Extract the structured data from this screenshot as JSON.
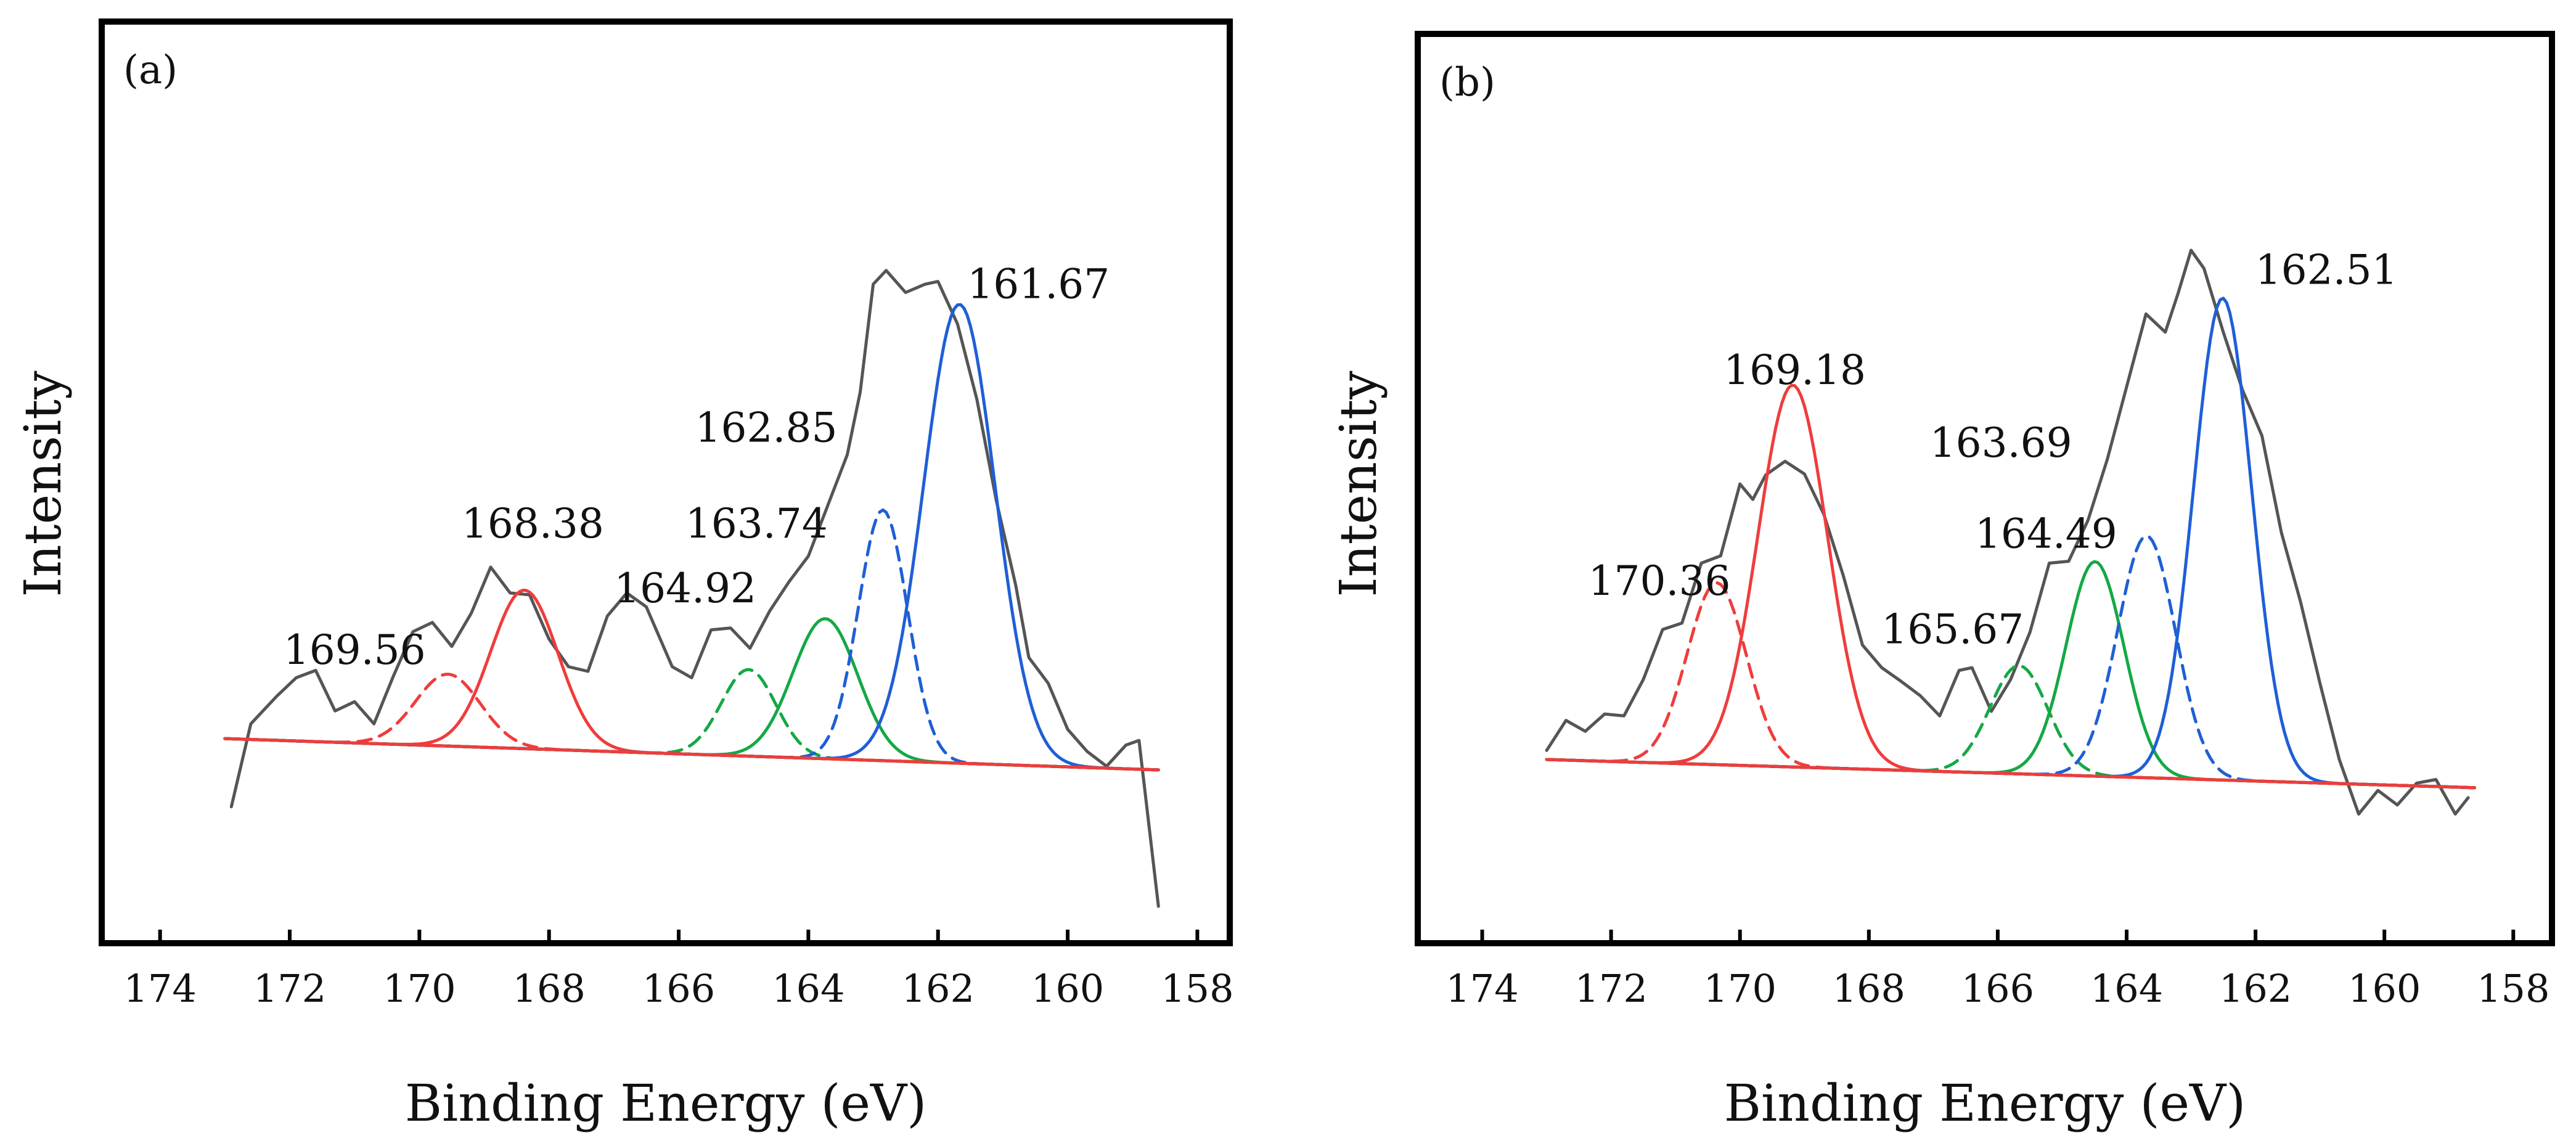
{
  "chart_data": [
    {
      "type": "line",
      "panel_label": "(a)",
      "xlabel": "Binding Energy (eV)",
      "ylabel": "Intensity",
      "xlim": [
        174.9,
        157.5
      ],
      "x_reversed": true,
      "ylim": [
        0,
        1
      ],
      "y_ticks_visible": false,
      "x_ticks": [
        174,
        172,
        170,
        168,
        166,
        164,
        162,
        160,
        158
      ],
      "grid": false,
      "baseline": [
        {
          "x": 173.0,
          "y": 0.222
        },
        {
          "x": 158.6,
          "y": 0.188
        }
      ],
      "raw": {
        "color": "#555555",
        "points": [
          [
            172.9,
            0.148
          ],
          [
            172.6,
            0.238
          ],
          [
            172.2,
            0.268
          ],
          [
            171.9,
            0.288
          ],
          [
            171.6,
            0.296
          ],
          [
            171.3,
            0.252
          ],
          [
            171.0,
            0.262
          ],
          [
            170.7,
            0.238
          ],
          [
            170.4,
            0.29
          ],
          [
            170.1,
            0.338
          ],
          [
            169.8,
            0.348
          ],
          [
            169.5,
            0.322
          ],
          [
            169.2,
            0.358
          ],
          [
            168.9,
            0.408
          ],
          [
            168.6,
            0.38
          ],
          [
            168.3,
            0.378
          ],
          [
            168.0,
            0.33
          ],
          [
            167.7,
            0.3
          ],
          [
            167.4,
            0.295
          ],
          [
            167.1,
            0.355
          ],
          [
            166.8,
            0.38
          ],
          [
            166.5,
            0.365
          ],
          [
            166.1,
            0.3
          ],
          [
            165.8,
            0.288
          ],
          [
            165.5,
            0.34
          ],
          [
            165.2,
            0.342
          ],
          [
            164.9,
            0.32
          ],
          [
            164.6,
            0.36
          ],
          [
            164.3,
            0.392
          ],
          [
            164.0,
            0.42
          ],
          [
            163.7,
            0.475
          ],
          [
            163.4,
            0.53
          ],
          [
            163.2,
            0.598
          ],
          [
            163.0,
            0.715
          ],
          [
            162.8,
            0.73
          ],
          [
            162.5,
            0.706
          ],
          [
            162.2,
            0.715
          ],
          [
            162.0,
            0.718
          ],
          [
            161.7,
            0.672
          ],
          [
            161.4,
            0.59
          ],
          [
            161.1,
            0.48
          ],
          [
            160.8,
            0.388
          ],
          [
            160.6,
            0.31
          ],
          [
            160.3,
            0.282
          ],
          [
            160.0,
            0.232
          ],
          [
            159.7,
            0.208
          ],
          [
            159.4,
            0.192
          ],
          [
            159.1,
            0.215
          ],
          [
            158.9,
            0.22
          ],
          [
            158.6,
            0.04
          ]
        ]
      },
      "peaks": [
        {
          "center": 169.56,
          "amplitude": 0.078,
          "sigma": 0.5,
          "color": "#f03c3c",
          "style": "dashed"
        },
        {
          "center": 168.38,
          "amplitude": 0.172,
          "sigma": 0.52,
          "color": "#f03c3c",
          "style": "solid"
        },
        {
          "center": 164.92,
          "amplitude": 0.094,
          "sigma": 0.42,
          "color": "#14a845",
          "style": "dashed"
        },
        {
          "center": 163.74,
          "amplitude": 0.152,
          "sigma": 0.5,
          "color": "#14a845",
          "style": "solid"
        },
        {
          "center": 162.85,
          "amplitude": 0.272,
          "sigma": 0.38,
          "color": "#1f5fd6",
          "style": "dashed"
        },
        {
          "center": 161.67,
          "amplitude": 0.498,
          "sigma": 0.55,
          "color": "#1f5fd6",
          "style": "solid"
        }
      ],
      "annotations": [
        {
          "text": "169.56",
          "x": 171.0,
          "y": 0.303
        },
        {
          "text": "168.38",
          "x": 168.25,
          "y": 0.44
        },
        {
          "text": "164.92",
          "x": 165.9,
          "y": 0.37
        },
        {
          "text": "163.74",
          "x": 164.8,
          "y": 0.44
        },
        {
          "text": "162.85",
          "x": 164.65,
          "y": 0.544
        },
        {
          "text": "161.67",
          "x": 160.45,
          "y": 0.7
        }
      ]
    },
    {
      "type": "line",
      "panel_label": "(b)",
      "xlabel": "Binding Energy (eV)",
      "ylabel": "Intensity",
      "xlim": [
        175.0,
        157.4
      ],
      "x_reversed": true,
      "ylim": [
        0,
        1
      ],
      "y_ticks_visible": false,
      "x_ticks": [
        174,
        172,
        170,
        168,
        166,
        164,
        162,
        160,
        158
      ],
      "grid": false,
      "baseline": [
        {
          "x": 173.0,
          "y": 0.202
        },
        {
          "x": 158.6,
          "y": 0.171
        }
      ],
      "raw": {
        "color": "#555555",
        "points": [
          [
            173.0,
            0.212
          ],
          [
            172.7,
            0.245
          ],
          [
            172.4,
            0.233
          ],
          [
            172.1,
            0.252
          ],
          [
            171.8,
            0.25
          ],
          [
            171.5,
            0.29
          ],
          [
            171.2,
            0.345
          ],
          [
            170.9,
            0.352
          ],
          [
            170.6,
            0.418
          ],
          [
            170.3,
            0.426
          ],
          [
            170.0,
            0.505
          ],
          [
            169.8,
            0.488
          ],
          [
            169.6,
            0.515
          ],
          [
            169.3,
            0.53
          ],
          [
            169.0,
            0.516
          ],
          [
            168.7,
            0.472
          ],
          [
            168.4,
            0.405
          ],
          [
            168.1,
            0.328
          ],
          [
            167.8,
            0.303
          ],
          [
            167.5,
            0.288
          ],
          [
            167.2,
            0.272
          ],
          [
            166.9,
            0.25
          ],
          [
            166.6,
            0.3
          ],
          [
            166.4,
            0.303
          ],
          [
            166.1,
            0.255
          ],
          [
            165.8,
            0.29
          ],
          [
            165.5,
            0.342
          ],
          [
            165.2,
            0.418
          ],
          [
            164.9,
            0.42
          ],
          [
            164.6,
            0.465
          ],
          [
            164.3,
            0.532
          ],
          [
            164.0,
            0.612
          ],
          [
            163.7,
            0.692
          ],
          [
            163.4,
            0.672
          ],
          [
            163.2,
            0.715
          ],
          [
            163.0,
            0.762
          ],
          [
            162.8,
            0.742
          ],
          [
            162.5,
            0.672
          ],
          [
            162.2,
            0.608
          ],
          [
            161.9,
            0.558
          ],
          [
            161.6,
            0.452
          ],
          [
            161.3,
            0.375
          ],
          [
            161.0,
            0.286
          ],
          [
            160.7,
            0.202
          ],
          [
            160.4,
            0.142
          ],
          [
            160.1,
            0.168
          ],
          [
            159.8,
            0.152
          ],
          [
            159.5,
            0.176
          ],
          [
            159.2,
            0.18
          ],
          [
            158.9,
            0.142
          ],
          [
            158.7,
            0.16
          ]
        ]
      },
      "peaks": [
        {
          "center": 170.36,
          "amplitude": 0.2,
          "sigma": 0.46,
          "color": "#f03c3c",
          "style": "dashed"
        },
        {
          "center": 169.18,
          "amplitude": 0.42,
          "sigma": 0.54,
          "color": "#f03c3c",
          "style": "solid"
        },
        {
          "center": 165.67,
          "amplitude": 0.119,
          "sigma": 0.45,
          "color": "#14a845",
          "style": "dashed"
        },
        {
          "center": 164.49,
          "amplitude": 0.236,
          "sigma": 0.45,
          "color": "#14a845",
          "style": "solid"
        },
        {
          "center": 163.69,
          "amplitude": 0.266,
          "sigma": 0.45,
          "color": "#1f5fd6",
          "style": "dashed"
        },
        {
          "center": 162.51,
          "amplitude": 0.53,
          "sigma": 0.45,
          "color": "#1f5fd6",
          "style": "solid"
        }
      ],
      "annotations": [
        {
          "text": "170.36",
          "x": 171.25,
          "y": 0.383
        },
        {
          "text": "169.18",
          "x": 169.15,
          "y": 0.615
        },
        {
          "text": "165.67",
          "x": 166.7,
          "y": 0.33
        },
        {
          "text": "164.49",
          "x": 165.25,
          "y": 0.435
        },
        {
          "text": "163.69",
          "x": 165.95,
          "y": 0.535
        },
        {
          "text": "162.51",
          "x": 160.9,
          "y": 0.725
        }
      ]
    }
  ]
}
